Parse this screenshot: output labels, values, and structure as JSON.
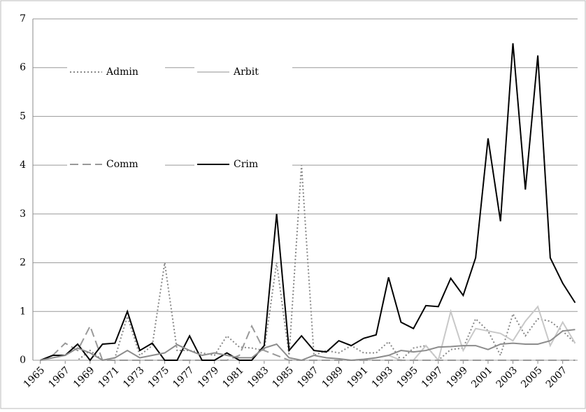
{
  "chart_data": {
    "type": "line",
    "x": [
      1965,
      1966,
      1967,
      1968,
      1969,
      1970,
      1971,
      1972,
      1973,
      1974,
      1975,
      1976,
      1977,
      1978,
      1979,
      1980,
      1981,
      1982,
      1983,
      1984,
      1985,
      1986,
      1987,
      1988,
      1989,
      1990,
      1991,
      1992,
      1993,
      1994,
      1995,
      1996,
      1997,
      1998,
      1999,
      2000,
      2001,
      2002,
      2003,
      2004,
      2005,
      2006,
      2007,
      2008
    ],
    "xlim": [
      1964.4,
      2008.2
    ],
    "xticks": [
      1965,
      1967,
      1969,
      1971,
      1973,
      1975,
      1977,
      1979,
      1981,
      1983,
      1985,
      1987,
      1989,
      1991,
      1993,
      1995,
      1997,
      1999,
      2001,
      2003,
      2005,
      2007
    ],
    "ylim": [
      0,
      7
    ],
    "yticks": [
      0,
      1,
      2,
      3,
      4,
      5,
      6,
      7
    ],
    "grid": true,
    "series": [
      {
        "name": "Admin",
        "color": "#888888",
        "style": "dotted",
        "values": [
          0,
          0,
          0,
          0,
          0.2,
          0,
          0.05,
          0.9,
          0.1,
          0.3,
          2.0,
          0.2,
          0.2,
          0.15,
          0.1,
          0.5,
          0.27,
          0.25,
          0.2,
          2.0,
          0.1,
          4.0,
          0.1,
          0.2,
          0.15,
          0.3,
          0.15,
          0.15,
          0.38,
          0,
          0.25,
          0.3,
          0,
          0.22,
          0.25,
          0.85,
          0.6,
          0.1,
          0.95,
          0.5,
          0.85,
          0.8,
          0.6,
          0.35
        ]
      },
      {
        "name": "Arbit",
        "color": "#c8c8c8",
        "style": "solid",
        "values": [
          0,
          0,
          0,
          0,
          0,
          0,
          0,
          0,
          0,
          0,
          0,
          0,
          0,
          0,
          0,
          0,
          0,
          0,
          0,
          0,
          0,
          0,
          0,
          0,
          0,
          0,
          0,
          0.05,
          0.1,
          0,
          0,
          0.3,
          0,
          1.0,
          0.2,
          0.65,
          0.6,
          0.55,
          0.4,
          0.8,
          1.1,
          0.3,
          0.78,
          0.35
        ]
      },
      {
        "name": "Comm",
        "color": "#999999",
        "style": "dashed",
        "values": [
          0,
          0.1,
          0.35,
          0.2,
          0.7,
          0,
          0,
          0,
          0,
          0,
          0,
          0,
          0,
          0,
          0,
          0,
          0.1,
          0.7,
          0.2,
          0.1,
          0,
          0,
          0,
          0,
          0,
          0,
          0,
          0,
          0,
          0,
          0,
          0,
          0,
          0,
          0,
          0,
          0,
          0,
          0,
          0,
          0,
          0,
          0,
          0
        ]
      },
      {
        "name": "Crim",
        "color": "#000000",
        "style": "solid",
        "values": [
          0,
          0.1,
          0.1,
          0.33,
          0,
          0.33,
          0.35,
          1.0,
          0.2,
          0.35,
          0,
          0,
          0.5,
          0,
          0,
          0.15,
          0,
          0,
          0.3,
          3.0,
          0.2,
          0.5,
          0.2,
          0.17,
          0.4,
          0.3,
          0.45,
          0.52,
          1.7,
          0.78,
          0.65,
          1.12,
          1.1,
          1.68,
          1.33,
          2.1,
          4.55,
          2.85,
          6.5,
          3.5,
          6.25,
          2.1,
          1.58,
          1.18
        ]
      },
      {
        "color": "#8c8c8c",
        "style": "solid",
        "values": [
          0,
          0.05,
          0.1,
          0.25,
          0.15,
          0,
          0.05,
          0.2,
          0.05,
          0.1,
          0.15,
          0.32,
          0.2,
          0.1,
          0.15,
          0.1,
          0.05,
          0.05,
          0.25,
          0.33,
          0.05,
          0,
          0.1,
          0.05,
          0.03,
          0,
          0.02,
          0.05,
          0.1,
          0.2,
          0.17,
          0.2,
          0.27,
          0.28,
          0.3,
          0.3,
          0.22,
          0.33,
          0.35,
          0.33,
          0.33,
          0.4,
          0.6,
          0.63
        ]
      }
    ]
  }
}
